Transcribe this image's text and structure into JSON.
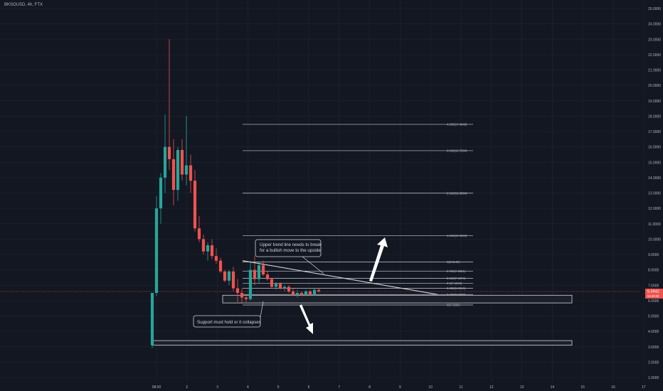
{
  "header": {
    "symbol_line": "BKSOUSD, 4h, FTX"
  },
  "colors": {
    "bg": "#131722",
    "up": "#26a69a",
    "down": "#ef5350",
    "grid": "#1e222d",
    "line": "#d1d4dc",
    "price_line": "#ef5350"
  },
  "price_badge": {
    "value": "6.5942",
    "sub": "02:20:00"
  },
  "chart_data": {
    "type": "candlestick",
    "title": "BKSOUSD, 4h, FTX",
    "ylim": [
      1,
      25
    ],
    "y_ticks": [
      "25.0000",
      "24.0000",
      "23.0000",
      "22.0000",
      "21.0000",
      "20.0000",
      "19.0000",
      "18.0000",
      "17.0000",
      "16.0000",
      "15.0000",
      "14.0000",
      "13.0000",
      "12.0000",
      "11.0000",
      "10.0000",
      "9.0000",
      "8.0000",
      "7.0000",
      "6.0000",
      "5.0000",
      "4.0000",
      "3.0000",
      "2.0000",
      "1.0000"
    ],
    "x_ticks": [
      "08:00",
      "2",
      "3",
      "4",
      "5",
      "6",
      "7",
      "8",
      "9",
      "10",
      "11",
      "12",
      "13",
      "14",
      "15",
      "16",
      "17"
    ],
    "candles": [
      {
        "o": 3.1,
        "h": 6.5,
        "l": 2.9,
        "c": 6.5
      },
      {
        "o": 6.5,
        "h": 12.8,
        "l": 6.3,
        "c": 12.0
      },
      {
        "o": 12.0,
        "h": 14.3,
        "l": 11.0,
        "c": 14.0
      },
      {
        "o": 14.0,
        "h": 18.1,
        "l": 13.0,
        "c": 16.0
      },
      {
        "o": 16.0,
        "h": 23.0,
        "l": 14.5,
        "c": 15.2
      },
      {
        "o": 15.2,
        "h": 16.5,
        "l": 12.2,
        "c": 13.2
      },
      {
        "o": 13.2,
        "h": 16.0,
        "l": 12.5,
        "c": 15.8
      },
      {
        "o": 15.8,
        "h": 16.5,
        "l": 13.8,
        "c": 14.2
      },
      {
        "o": 14.2,
        "h": 18.0,
        "l": 13.5,
        "c": 14.8
      },
      {
        "o": 14.8,
        "h": 15.5,
        "l": 13.0,
        "c": 13.8
      },
      {
        "o": 13.8,
        "h": 14.5,
        "l": 10.5,
        "c": 10.7
      },
      {
        "o": 10.7,
        "h": 11.5,
        "l": 9.8,
        "c": 10.0
      },
      {
        "o": 10.0,
        "h": 10.3,
        "l": 9.0,
        "c": 9.2
      },
      {
        "o": 9.2,
        "h": 9.8,
        "l": 8.6,
        "c": 9.6
      },
      {
        "o": 9.6,
        "h": 10.0,
        "l": 8.7,
        "c": 8.9
      },
      {
        "o": 8.9,
        "h": 9.4,
        "l": 8.4,
        "c": 8.6
      },
      {
        "o": 8.6,
        "h": 8.8,
        "l": 7.8,
        "c": 7.9
      },
      {
        "o": 7.9,
        "h": 8.0,
        "l": 7.2,
        "c": 7.3
      },
      {
        "o": 7.3,
        "h": 8.0,
        "l": 7.0,
        "c": 7.9
      },
      {
        "o": 7.9,
        "h": 8.2,
        "l": 6.6,
        "c": 6.8
      },
      {
        "o": 6.8,
        "h": 7.4,
        "l": 5.9,
        "c": 6.5
      },
      {
        "o": 6.5,
        "h": 6.8,
        "l": 5.8,
        "c": 6.2
      },
      {
        "o": 6.2,
        "h": 6.3,
        "l": 5.9,
        "c": 6.1
      },
      {
        "o": 6.1,
        "h": 8.6,
        "l": 6.0,
        "c": 8.0
      },
      {
        "o": 8.0,
        "h": 8.9,
        "l": 7.0,
        "c": 7.4
      },
      {
        "o": 7.4,
        "h": 8.5,
        "l": 7.1,
        "c": 8.3
      },
      {
        "o": 8.3,
        "h": 8.6,
        "l": 7.6,
        "c": 7.7
      },
      {
        "o": 7.7,
        "h": 7.9,
        "l": 7.3,
        "c": 7.4
      },
      {
        "o": 7.4,
        "h": 7.5,
        "l": 6.8,
        "c": 6.9
      },
      {
        "o": 6.9,
        "h": 7.2,
        "l": 6.7,
        "c": 7.1
      },
      {
        "o": 7.1,
        "h": 7.2,
        "l": 6.7,
        "c": 6.8
      },
      {
        "o": 6.8,
        "h": 7.0,
        "l": 6.6,
        "c": 6.9
      },
      {
        "o": 6.9,
        "h": 7.0,
        "l": 6.5,
        "c": 6.6
      },
      {
        "o": 6.6,
        "h": 6.8,
        "l": 6.3,
        "c": 6.4
      },
      {
        "o": 6.4,
        "h": 6.7,
        "l": 6.2,
        "c": 6.5
      },
      {
        "o": 6.5,
        "h": 6.6,
        "l": 6.3,
        "c": 6.4
      },
      {
        "o": 6.4,
        "h": 6.7,
        "l": 6.3,
        "c": 6.6
      },
      {
        "o": 6.6,
        "h": 6.7,
        "l": 6.3,
        "c": 6.4
      },
      {
        "o": 6.4,
        "h": 6.8,
        "l": 6.3,
        "c": 6.7
      },
      {
        "o": 6.7,
        "h": 6.8,
        "l": 6.5,
        "c": 6.6
      }
    ],
    "fib_levels": [
      {
        "label": "4.236(17.4648)",
        "value": 17.4648
      },
      {
        "label": "3.618(15.7554)",
        "value": 15.7554
      },
      {
        "label": "2.618(12.9894)",
        "value": 12.9894
      },
      {
        "label": "1.618(10.2234)",
        "value": 10.2234
      },
      {
        "label": "1(8.5140)",
        "value": 8.514
      },
      {
        "label": "0.786(7.9221)",
        "value": 7.9221
      },
      {
        "label": "0.618(7.4574)",
        "value": 7.4574
      },
      {
        "label": "0.5(7.1310)",
        "value": 7.131
      },
      {
        "label": "0.382(6.8044)",
        "value": 6.8044
      },
      {
        "label": "0.236(6.4006)",
        "value": 6.4006
      },
      {
        "label": "0(5.7180)",
        "value": 5.718
      }
    ],
    "current_price": 6.5942,
    "annotations": {
      "upper_note_lines": [
        "Upper trend line needs to break",
        "for a bullish move to the upside"
      ],
      "lower_note": "Support must hold or it collapses"
    }
  }
}
